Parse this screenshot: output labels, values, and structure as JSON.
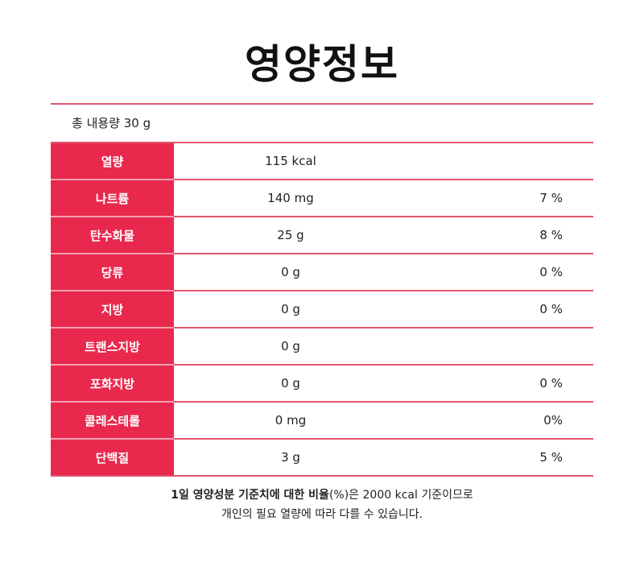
{
  "title": "영양정보",
  "serving": "총 내용량 30 g",
  "rows": [
    {
      "label": "열량",
      "amount": "115 kcal",
      "pct": ""
    },
    {
      "label": "나트륨",
      "amount": "140 mg",
      "pct": "7 %"
    },
    {
      "label": "탄수화물",
      "amount": "25 g",
      "pct": "8 %"
    },
    {
      "label": "당류",
      "amount": "0 g",
      "pct": "0 %"
    },
    {
      "label": "지방",
      "amount": "0 g",
      "pct": "0 %"
    },
    {
      "label": "트랜스지방",
      "amount": "0 g",
      "pct": ""
    },
    {
      "label": "포화지방",
      "amount": "0 g",
      "pct": "0 %"
    },
    {
      "label": "콜레스테롤",
      "amount": "0 mg",
      "pct": "0%"
    },
    {
      "label": "단백질",
      "amount": "3 g",
      "pct": "5 %"
    }
  ],
  "note": {
    "bold": "1일 영양성분 기준치에 대한 비율",
    "line1_rest": "(%)은 2000 kcal 기준이므로",
    "line2": "개인의 필요 열량에 따라 다를 수 있습니다."
  }
}
